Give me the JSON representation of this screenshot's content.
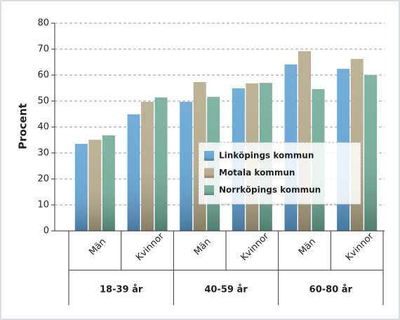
{
  "chart_data": {
    "type": "bar",
    "ylabel": "Procent",
    "categories": [
      "Män",
      "Kvinnor",
      "Män",
      "Kvinnor",
      "Män",
      "Kvinnor"
    ],
    "groups": [
      "18-39 år",
      "40-59 år",
      "60-80 år"
    ],
    "series": [
      {
        "name": "Linköpings kommun",
        "color": "#5b9fd2",
        "values": [
          33.5,
          44.9,
          49.7,
          54.9,
          64.1,
          62.4
        ]
      },
      {
        "name": "Motala kommun",
        "color": "#b2a684",
        "values": [
          35.1,
          49.7,
          57.3,
          56.8,
          69.2,
          66.2
        ]
      },
      {
        "name": "Norrköpings kommun",
        "color": "#6aa892",
        "values": [
          36.8,
          51.4,
          51.6,
          57.0,
          54.6,
          60.0
        ]
      }
    ],
    "ylim": [
      0,
      80
    ],
    "yticks": [
      0,
      10,
      20,
      30,
      40,
      50,
      60,
      70,
      80
    ],
    "grid": true
  }
}
